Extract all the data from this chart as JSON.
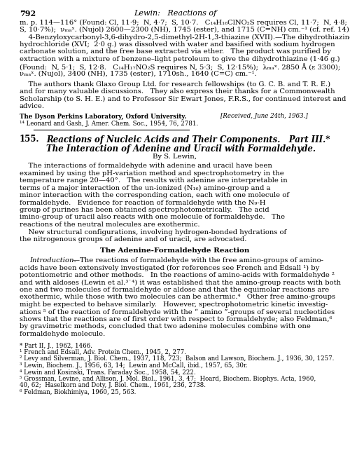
{
  "background_color": "#ffffff",
  "page_number": "792",
  "header_title": "Lewin:   Reactions of",
  "top_text_lines": [
    "m. p. 114—116° (Found: Cl, 11·9;  N, 4·7;  S, 10·7.   C₁₄H₁₆ClNO₂S requires Cl, 11·7;  N, 4·8;",
    "S, 10·7%);  νₘₐˣ. (Nujol) 2600—2300 (NH), 1745 (ester), and 1715 (C=NH) cm.⁻¹ (cf. ref. 14).",
    "    4-Benzyloxycarbonyl-3,6-dihydro-2,5-dimethyl-2H-1,3-thiazine (XVII).—The dihydrothiazine",
    "hydrochloride (XVI;  2·0 g.) was dissolved with water and basified with sodium hydrogen",
    "carbonate solution, and the free base extracted via ether.   The product was purified by",
    "extraction with a mixture of benzene–light petroleum to give the dihydrothiazine (1·46 g.)",
    "(Found:  N, 5·1;  S, 12·8.   C₁₄H₁₇NO₂S requires N, 5·3;  S, 12·15%);  λₘₐˣ. 2850 Å (ε 3300);",
    "νₘₐˣ. (Nujol), 3400 (NH), 1735 (ester), 1710sh., 1640 (C=C) cm.⁻¹."
  ],
  "acknowledgement_lines": [
    "    The authors thank Glaxo Group Ltd. for research fellowships (to G. C. B. and T. R. E.)",
    "and for many valuable discussions.   They also express their thanks for a Commonwealth",
    "Scholarship (to S. H. E.) and to Professor Sir Ewart Jones, F.R.S., for continued interest and",
    "advice."
  ],
  "institution_left": "The Dyson Perkins Laboratory, Oxford University.",
  "institution_right": "[Received, June 24th, 1963.]",
  "footnote14": "¹⁴ Leonard and Gash, J. Amer. Chem. Soc., 1954, 76, 2781.",
  "section_number": "155.",
  "section_title_line1": "Reactions of Nucleic Acids and Their Components.   Part III.*",
  "section_title_line2": "The Interaction of Adenine and Uracil with Formaldehyde.",
  "author_line": "By S. Lewin,",
  "abstract_para": [
    "    The interactions of formaldehyde with adenine and uracil have been",
    "examined by using the pH-variation method and spectrophotometry in the",
    "temperature range 20—40°.   The results with adenine are interpretable in",
    "terms of a major interaction of the un-ionized (N₁₆) amino-group and a",
    "minor interaction with the corresponding cation, each with one molecule of",
    "formaldehyde.   Evidence for reaction of formaldehyde with the N₉-H",
    "group of purines has been obtained spectrophotometrically.   The acid",
    "imino-group of uracil also reacts with one molecule of formaldehyde.   The",
    "reactions of the neutral molecules are exothermic.",
    "    New structural configurations, involving hydrogen-bonded hydrations of",
    "the nitrogenous groups of adenine and of uracil, are advocated."
  ],
  "section_heading": "The Adenine-Formaldehyde Reaction",
  "intro_italic": "Introduction.",
  "intro_dash": "—",
  "intro_rest": "The reactions of formaldehyde with the free amino-groups of amino-",
  "intro_lines": [
    "acids have been extensively investigated (for references see French and Edsall ¹) by",
    "potentiometric and other methods.   In the reactions of amino-acids with formaldehyde ²",
    "and with aldoses (Lewin et al.³˙⁴) it was established that the amino-group reacts with both",
    "one and two molecules of formaldehyde or aldose and that the equimolar reactions are",
    "exothermic, while those with two molecules can be athermic.⁴   Other free amino-groups",
    "might be expected to behave similarly.   However, spectrophotometric kinetic investig-",
    "ations ⁵ of the reaction of formaldehyde with the “ amino ”-groups of several nucleotides",
    "shows that the reactions are of first order with respect to formaldehyde; also Feldman,⁶",
    "by gravimetric methods, concluded that two adenine molecules combine with one",
    "formaldehyde molecule."
  ],
  "footnotes_bottom": [
    "* Part II, J., 1962, 1466.",
    "¹ French and Edsall, Adv. Protein Chem., 1945, 2, 277.",
    "² Levy and Silverman, J. Biol. Chem., 1937, 118, 723;  Balson and Lawson, Biochem. J., 1936, 30, 1257.",
    "³ Lewin, Biochem. J., 1956, 63, 14;  Lewin and McCall, ibid., 1957, 65, 30r.",
    "⁴ Lewin and Kosinski, Trans. Faraday Soc., 1958, 54, 222.",
    "⁵ Grossman, Levine, and Allison, J. Mol. Biol., 1961, 3, 47;  Hoard, Biochem. Biophys. Acta, 1960,",
    "40, 62;  Haselkorn and Doty, J. Biol. Chem., 1961, 236, 2738.",
    "⁶ Feldman, Biokhimiya, 1960, 25, 563."
  ]
}
